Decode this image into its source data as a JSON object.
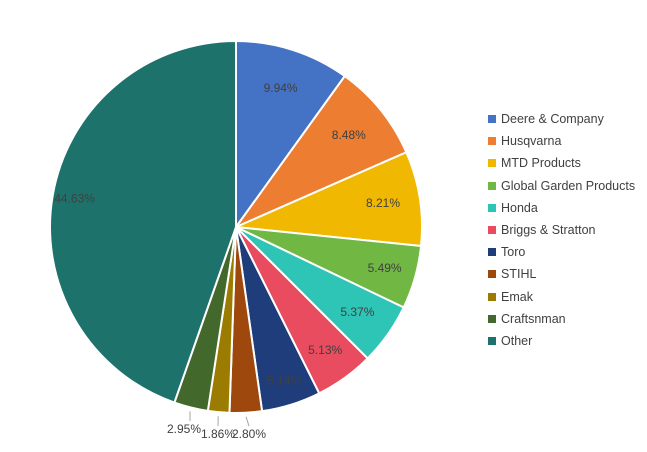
{
  "chart_data": {
    "type": "pie",
    "title": "",
    "legend_position": "right",
    "slices": [
      {
        "label": "Deere & Company",
        "value": 9.94,
        "display": "9.94%",
        "color": "#4472C4"
      },
      {
        "label": "Husqvarna",
        "value": 8.48,
        "display": "8.48%",
        "color": "#ED7D31"
      },
      {
        "label": "MTD Products",
        "value": 8.21,
        "display": "8.21%",
        "color": "#F0B800"
      },
      {
        "label": "Global Garden Products",
        "value": 5.49,
        "display": "5.49%",
        "color": "#70B843"
      },
      {
        "label": "Honda",
        "value": 5.37,
        "display": "5.37%",
        "color": "#2EC4B6"
      },
      {
        "label": "Briggs & Stratton",
        "value": 5.13,
        "display": "5.13%",
        "color": "#E84C5E"
      },
      {
        "label": "Toro",
        "value": 5.14,
        "display": "5.14%",
        "color": "#1F3D7A"
      },
      {
        "label": "STIHL",
        "value": 2.8,
        "display": "2.80%",
        "color": "#9E480E"
      },
      {
        "label": "Emak",
        "value": 1.86,
        "display": "1.86%",
        "color": "#9C7C00"
      },
      {
        "label": "Craftsnman",
        "value": 2.95,
        "display": "2.95%",
        "color": "#43682B"
      },
      {
        "label": "Other",
        "value": 44.63,
        "display": "44.63%",
        "color": "#1E726C"
      }
    ]
  }
}
